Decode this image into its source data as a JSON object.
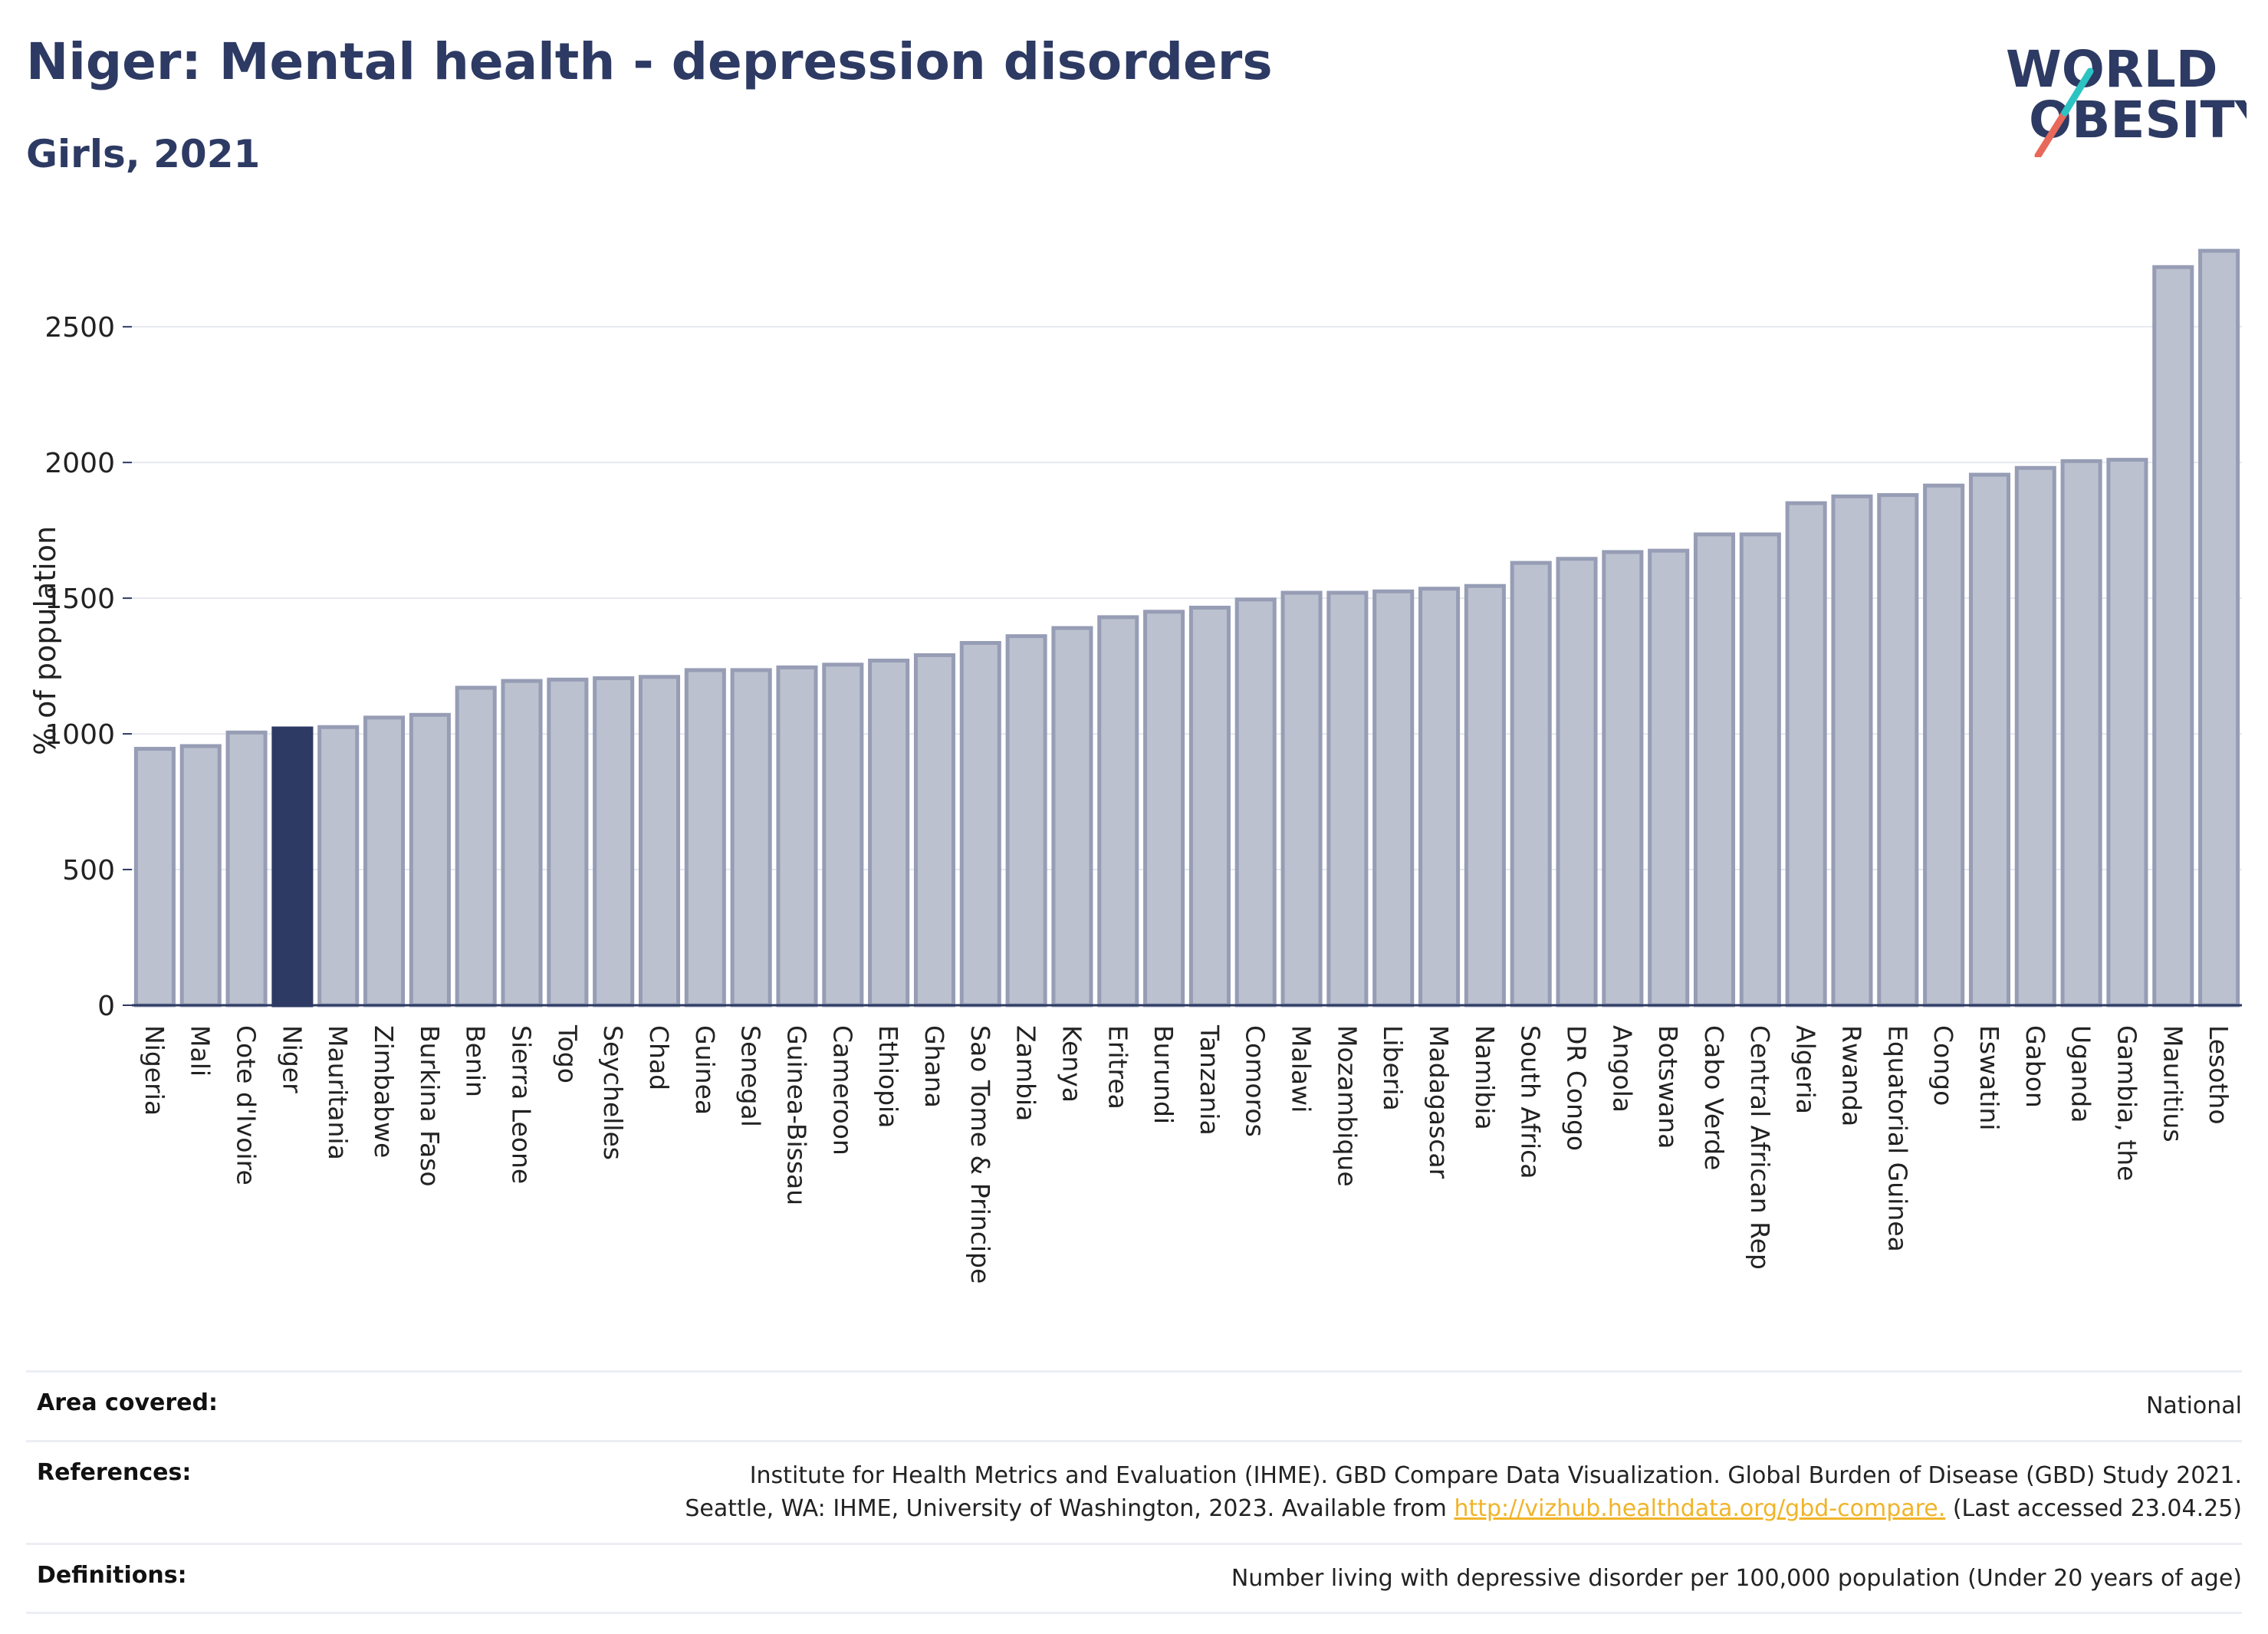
{
  "header": {
    "title": "Niger: Mental health - depression disorders",
    "subtitle": "Girls, 2021"
  },
  "logo": {
    "line1": "WORLD",
    "line2": "OBESITY",
    "slash_colors": [
      "#2cc3c3",
      "#e8685a"
    ]
  },
  "colors": {
    "bar_default": "#bcc1cf",
    "bar_border": "#969db5",
    "bar_highlight": "#2d3a63",
    "title": "#2d3a63",
    "link": "#f0b429"
  },
  "chart_data": {
    "type": "bar",
    "title": "Niger: Mental health - depression disorders",
    "subtitle": "Girls, 2021",
    "xlabel": "",
    "ylabel": "% of population",
    "ylim": [
      0,
      2800
    ],
    "yticks": [
      0,
      500,
      1000,
      1500,
      2000,
      2500
    ],
    "grid": true,
    "highlight": "Niger",
    "categories": [
      "Nigeria",
      "Mali",
      "Cote d'Ivoire",
      "Niger",
      "Mauritania",
      "Zimbabwe",
      "Burkina Faso",
      "Benin",
      "Sierra Leone",
      "Togo",
      "Seychelles",
      "Chad",
      "Guinea",
      "Senegal",
      "Guinea-Bissau",
      "Cameroon",
      "Ethiopia",
      "Ghana",
      "Sao Tome & Principe",
      "Zambia",
      "Kenya",
      "Eritrea",
      "Burundi",
      "Tanzania",
      "Comoros",
      "Malawi",
      "Mozambique",
      "Liberia",
      "Madagascar",
      "Namibia",
      "South Africa",
      "DR Congo",
      "Angola",
      "Botswana",
      "Cabo Verde",
      "Central African Rep",
      "Algeria",
      "Rwanda",
      "Equatorial Guinea",
      "Congo",
      "Eswatini",
      "Gabon",
      "Uganda",
      "Gambia, the",
      "Mauritius",
      "Lesotho"
    ],
    "values": [
      945,
      955,
      1005,
      1020,
      1025,
      1060,
      1070,
      1170,
      1195,
      1200,
      1205,
      1210,
      1235,
      1235,
      1245,
      1255,
      1270,
      1290,
      1335,
      1360,
      1390,
      1430,
      1450,
      1465,
      1495,
      1520,
      1520,
      1525,
      1535,
      1545,
      1630,
      1645,
      1670,
      1675,
      1735,
      1735,
      1850,
      1875,
      1880,
      1915,
      1955,
      1980,
      2005,
      2010,
      2720,
      2780
    ]
  },
  "footer": {
    "area_label": "Area covered:",
    "area_value": "National",
    "references_label": "References:",
    "references_line1": "Institute for Health Metrics and Evaluation (IHME). GBD Compare Data Visualization. Global Burden of Disease (GBD) Study 2021.",
    "references_line2_pre": "Seattle, WA: IHME, University of Washington, 2023. Available from ",
    "references_link": "http://vizhub.healthdata.org/gbd-compare.",
    "references_line2_post": " (Last accessed 23.04.25)",
    "definitions_label": "Definitions:",
    "definitions_value": "Number living with depressive disorder per 100,000 population (Under 20 years of age)"
  }
}
